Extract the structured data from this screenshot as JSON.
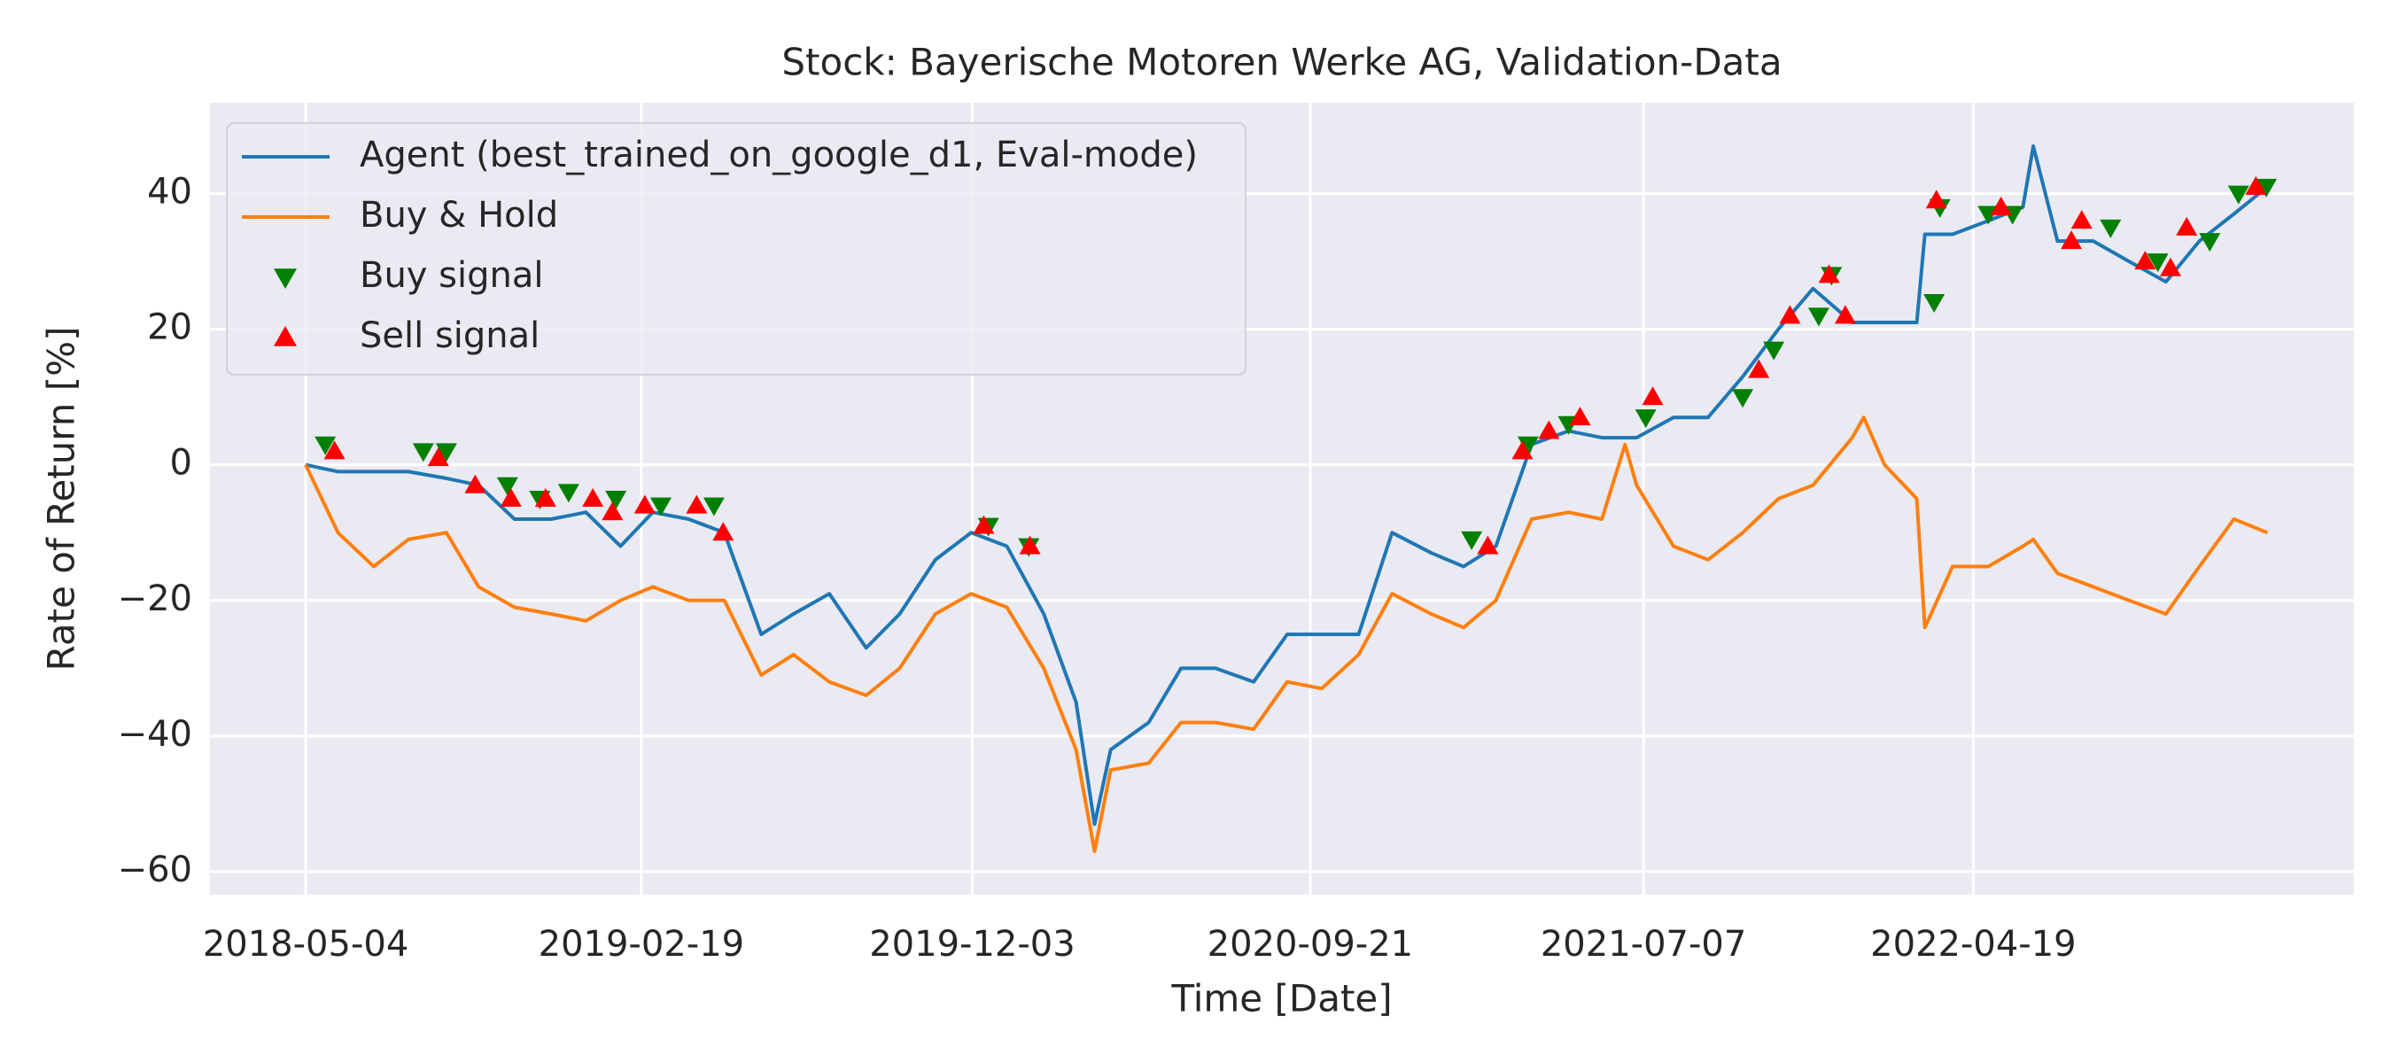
{
  "chart_data": {
    "type": "line",
    "title": "Stock: Bayerische Motoren Werke AG, Validation-Data",
    "xlabel": "Time [Date]",
    "ylabel": "Rate of Return [%]",
    "grid": true,
    "legend": "upper left",
    "xlim": [
      "2018-02-10",
      "2023-03-15"
    ],
    "xticks": [
      "2018-05-04",
      "2019-02-19",
      "2019-12-03",
      "2020-09-21",
      "2021-07-07",
      "2022-04-19"
    ],
    "ylim": [
      -63.4,
      53.4
    ],
    "yticks": [
      {
        "value": -60,
        "label": "−60"
      },
      {
        "value": -40,
        "label": "−40"
      },
      {
        "value": -20,
        "label": "−20"
      },
      0,
      20,
      40
    ],
    "x": [
      "2018-05-04",
      "2018-06-01",
      "2018-07-02",
      "2018-08-01",
      "2018-09-03",
      "2018-10-01",
      "2018-11-01",
      "2018-12-03",
      "2019-01-02",
      "2019-02-01",
      "2019-03-01",
      "2019-04-01",
      "2019-05-02",
      "2019-06-03",
      "2019-07-01",
      "2019-08-01",
      "2019-09-02",
      "2019-10-01",
      "2019-11-01",
      "2019-12-02",
      "2020-01-02",
      "2020-02-03",
      "2020-03-02",
      "2020-03-18",
      "2020-04-01",
      "2020-05-04",
      "2020-06-01",
      "2020-07-01",
      "2020-08-03",
      "2020-09-01",
      "2020-10-01",
      "2020-11-02",
      "2020-12-01",
      "2021-01-04",
      "2021-02-01",
      "2021-03-01",
      "2021-04-01",
      "2021-05-03",
      "2021-06-01",
      "2021-06-21",
      "2021-07-01",
      "2021-08-02",
      "2021-09-01",
      "2021-10-01",
      "2021-11-01",
      "2021-12-01",
      "2022-01-04",
      "2022-01-14",
      "2022-02-01",
      "2022-03-01",
      "2022-03-08",
      "2022-04-01",
      "2022-05-02",
      "2022-06-01",
      "2022-06-10",
      "2022-07-01",
      "2022-08-01",
      "2022-09-01",
      "2022-10-03",
      "2022-11-01",
      "2022-12-01",
      "2022-12-30"
    ],
    "series": [
      {
        "name": "Agent (best_trained_on_google_d1, Eval-mode)",
        "color": "#1f77b4",
        "values": [
          0,
          -1,
          -1,
          -1,
          -2,
          -3,
          -8,
          -8,
          -7,
          -12,
          -7,
          -8,
          -10,
          -25,
          -22,
          -19,
          -27,
          -22,
          -14,
          -10,
          -12,
          -22,
          -35,
          -53,
          -42,
          -38,
          -30,
          -30,
          -32,
          -25,
          -25,
          -25,
          -10,
          -13,
          -15,
          -12,
          3,
          5,
          4,
          4,
          4,
          7,
          7,
          13,
          20,
          26,
          21,
          21,
          21,
          21,
          34,
          34,
          36,
          38,
          47,
          33,
          33,
          30,
          27,
          33,
          37,
          41
        ]
      },
      {
        "name": "Buy & Hold",
        "color": "#ff7f0e",
        "values": [
          0,
          -10,
          -15,
          -11,
          -10,
          -18,
          -21,
          -22,
          -23,
          -20,
          -18,
          -20,
          -20,
          -31,
          -28,
          -32,
          -34,
          -30,
          -22,
          -19,
          -21,
          -30,
          -42,
          -57,
          -45,
          -44,
          -38,
          -38,
          -39,
          -32,
          -33,
          -28,
          -19,
          -22,
          -24,
          -20,
          -8,
          -7,
          -8,
          3,
          -3,
          -12,
          -14,
          -10,
          -5,
          -3,
          4,
          7,
          0,
          -5,
          -24,
          -15,
          -15,
          -12,
          -11,
          -16,
          -18,
          -20,
          -22,
          -15,
          -8,
          -10
        ]
      }
    ],
    "signals": [
      {
        "name": "Buy signal",
        "color": "#008000",
        "marker": "triangle-down",
        "x": [
          "2018-05-21",
          "2018-08-14",
          "2018-09-03",
          "2018-10-26",
          "2018-11-23",
          "2018-12-18",
          "2019-01-28",
          "2019-03-08",
          "2019-04-23",
          "2019-12-17",
          "2020-01-21",
          "2021-02-08",
          "2021-03-29",
          "2021-05-03",
          "2021-07-09",
          "2021-10-01",
          "2021-10-28",
          "2021-12-06",
          "2021-12-17",
          "2022-03-16",
          "2022-03-21",
          "2022-05-02",
          "2022-05-23",
          "2022-08-16",
          "2022-09-26",
          "2022-11-10",
          "2022-12-05",
          "2022-12-29"
        ],
        "values": [
          3,
          2,
          2,
          -3,
          -5,
          -4,
          -5,
          -6,
          -6,
          -9,
          -12,
          -11,
          3,
          6,
          7,
          10,
          17,
          22,
          28,
          24,
          38,
          37,
          37,
          35,
          30,
          33,
          40,
          41
        ]
      },
      {
        "name": "Sell signal",
        "color": "#ff0000",
        "marker": "triangle-up",
        "x": [
          "2018-05-29",
          "2018-08-27",
          "2018-09-28",
          "2018-10-29",
          "2018-11-28",
          "2019-01-08",
          "2019-01-25",
          "2019-02-22",
          "2019-04-08",
          "2019-05-01",
          "2019-12-13",
          "2020-01-22",
          "2021-02-22",
          "2021-03-24",
          "2021-04-16",
          "2021-05-13",
          "2021-07-15",
          "2021-10-15",
          "2021-11-11",
          "2021-12-15",
          "2021-12-29",
          "2022-03-18",
          "2022-05-13",
          "2022-07-13",
          "2022-07-22",
          "2022-09-15",
          "2022-10-07",
          "2022-10-21",
          "2022-12-20"
        ],
        "values": [
          2,
          1,
          -3,
          -5,
          -5,
          -5,
          -7,
          -6,
          -6,
          -10,
          -9,
          -12,
          -12,
          2,
          5,
          7,
          10,
          14,
          22,
          28,
          22,
          39,
          38,
          33,
          36,
          30,
          29,
          35,
          41
        ]
      }
    ]
  }
}
